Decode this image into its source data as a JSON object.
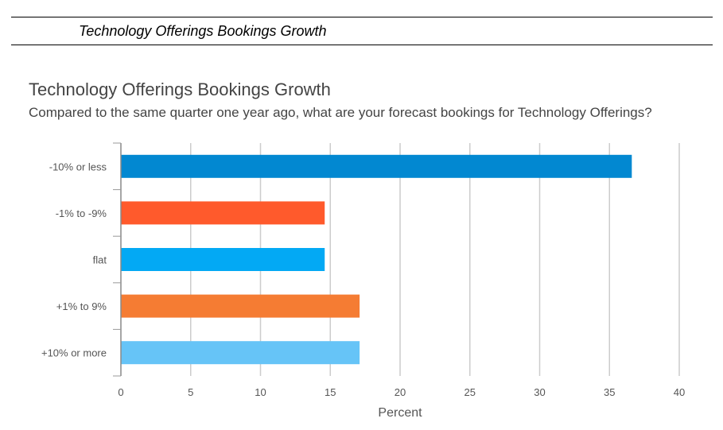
{
  "header": {
    "title": "Technology Offerings Bookings Growth"
  },
  "chart_data": {
    "type": "bar",
    "orientation": "horizontal",
    "title": "Technology Offerings Bookings Growth",
    "subtitle": "Compared to the same quarter one year ago, what are your forecast bookings for Technology Offerings?",
    "categories": [
      "-10% or less",
      "-1% to -9%",
      "flat",
      "+1% to 9%",
      "+10% or more"
    ],
    "values": [
      36.6,
      14.6,
      14.6,
      17.1,
      17.1
    ],
    "colors": [
      "#0288d1",
      "#ff5a2c",
      "#03a9f4",
      "#f57c33",
      "#66c4f7"
    ],
    "xlabel": "Percent",
    "ylabel": "",
    "xlim": [
      0,
      40
    ],
    "xticks": [
      0,
      5,
      10,
      15,
      20,
      25,
      30,
      35,
      40
    ],
    "grid": true
  }
}
